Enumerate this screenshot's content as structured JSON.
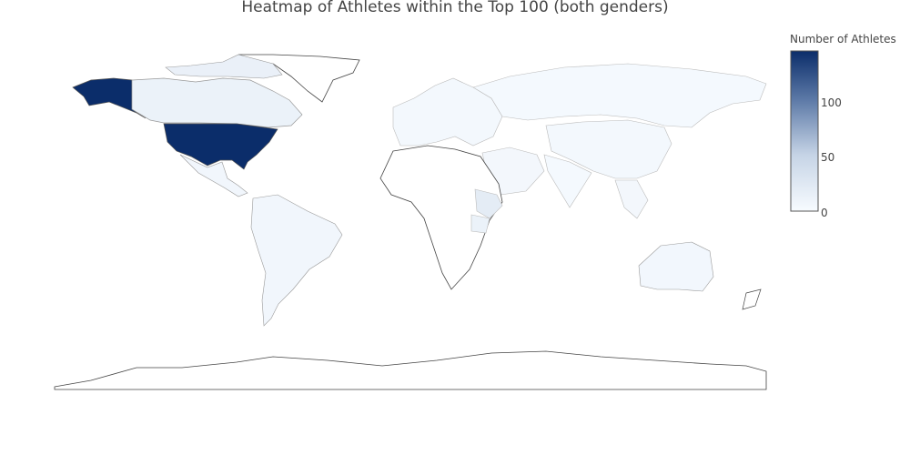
{
  "chart_data": {
    "type": "heatmap",
    "subtype": "choropleth",
    "title": "Heatmap of Athletes within the Top 100 (both genders)",
    "colorbar": {
      "title": "Number of Athletes",
      "ticks": [
        "0",
        "50",
        "100"
      ],
      "range": [
        0,
        145
      ],
      "scale_low": "#f7fbff",
      "scale_high": "#08306b"
    },
    "regions": [
      {
        "name": "United States",
        "value": 145
      },
      {
        "name": "Canada",
        "value": 12
      },
      {
        "name": "Ethiopia",
        "value": 20
      },
      {
        "name": "Kenya",
        "value": 12
      },
      {
        "name": "Brazil",
        "value": 6
      },
      {
        "name": "Australia",
        "value": 5
      },
      {
        "name": "Mexico",
        "value": 6
      },
      {
        "name": "Russia",
        "value": 3
      },
      {
        "name": "China",
        "value": 4
      },
      {
        "name": "Europe",
        "value": 4
      },
      {
        "name": "India",
        "value": 3
      },
      {
        "name": "Argentina",
        "value": 2
      }
    ]
  }
}
